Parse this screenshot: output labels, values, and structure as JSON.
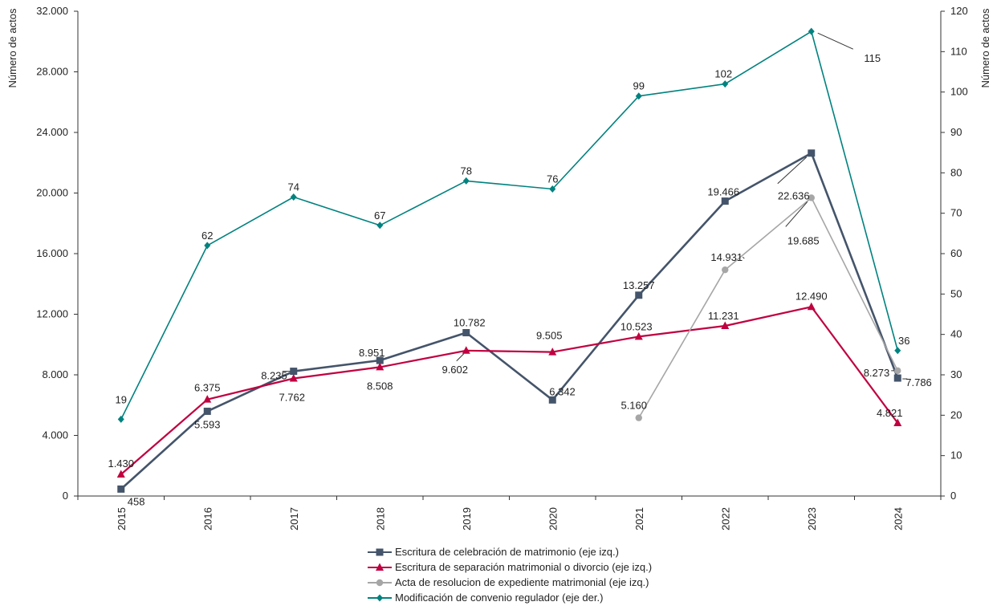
{
  "chart_data": {
    "type": "line",
    "categories": [
      "2015",
      "2016",
      "2017",
      "2018",
      "2019",
      "2020",
      "2021",
      "2022",
      "2023",
      "2024"
    ],
    "left_axis": {
      "label": "Número de actos",
      "ylim": [
        0,
        32000
      ],
      "ticks": [
        0,
        4000,
        8000,
        12000,
        16000,
        20000,
        24000,
        28000,
        32000
      ],
      "tick_labels": [
        "0",
        "4.000",
        "8.000",
        "12.000",
        "16.000",
        "20.000",
        "24.000",
        "28.000",
        "32.000"
      ]
    },
    "right_axis": {
      "label": "Número de actos",
      "ylim": [
        0,
        120
      ],
      "ticks": [
        0,
        10,
        20,
        30,
        40,
        50,
        60,
        70,
        80,
        90,
        100,
        110,
        120
      ],
      "tick_labels": [
        "0",
        "10",
        "20",
        "30",
        "40",
        "50",
        "60",
        "70",
        "80",
        "90",
        "100",
        "110",
        "120"
      ]
    },
    "grid": false,
    "legend_position": "bottom",
    "series": [
      {
        "name": "Escritura de celebración de matrimonio (eje izq.)",
        "axis": "left",
        "color": "#44546a",
        "marker": "square",
        "values": [
          458,
          5593,
          8235,
          8951,
          10782,
          6342,
          13257,
          19466,
          22636,
          7786
        ],
        "labels": [
          "458",
          "5.593",
          "8.235",
          "8.951",
          "10.782",
          "6.342",
          "13.257",
          "19.466",
          "22.636",
          "7.786"
        ]
      },
      {
        "name": "Escritura de separación matrimonial o divorcio (eje izq.)",
        "axis": "left",
        "color": "#c00040",
        "marker": "triangle",
        "values": [
          1430,
          6375,
          7762,
          8508,
          9602,
          9505,
          10523,
          11231,
          12490,
          4821
        ],
        "labels": [
          "1.430",
          "6.375",
          "7.762",
          "8.508",
          "9.602",
          "9.505",
          "10.523",
          "11.231",
          "12.490",
          "4.821"
        ]
      },
      {
        "name": "Acta de resolucion de expediente matrimonial (eje izq.)",
        "axis": "left",
        "color": "#a6a6a6",
        "marker": "circle",
        "values": [
          null,
          null,
          null,
          null,
          null,
          null,
          5160,
          14931,
          19685,
          8273
        ],
        "labels": [
          null,
          null,
          null,
          null,
          null,
          null,
          "5.160",
          "14.931",
          "19.685",
          "8.273"
        ]
      },
      {
        "name": "Modificación de convenio regulador (eje der.)",
        "axis": "right",
        "color": "#00827f",
        "marker": "diamond",
        "values": [
          19,
          62,
          74,
          67,
          78,
          76,
          99,
          102,
          115,
          36
        ],
        "labels": [
          "19",
          "62",
          "74",
          "67",
          "78",
          "76",
          "99",
          "102",
          "115",
          "36"
        ]
      }
    ]
  }
}
